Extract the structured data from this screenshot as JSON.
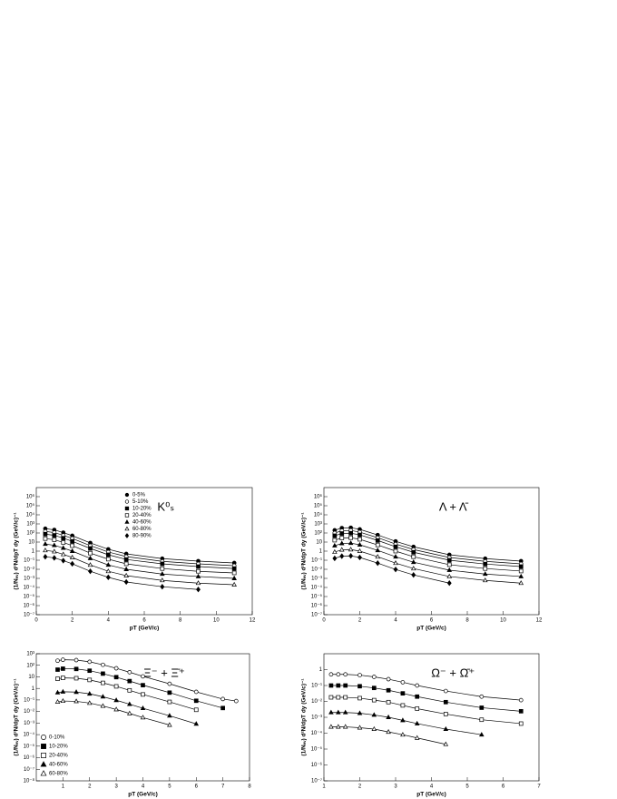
{
  "chart_data": [
    {
      "type": "scatter",
      "title": "K⁰ₛ",
      "xlabel": "pT (GeV/c)",
      "ylabel": "(1/Nₑᵥ) d²N/dpT dy (GeV/c)⁻¹",
      "log_y": true,
      "color": "#000000",
      "legend": "upper center",
      "xlim": [
        0,
        12
      ],
      "xticks": [
        0,
        2,
        4,
        6,
        8,
        10,
        12
      ],
      "ylim": [
        1e-07,
        10000000.0
      ],
      "yticks": [
        {
          "value": 1e-07,
          "label": "10⁻⁷"
        },
        {
          "value": 1e-06,
          "label": "10⁻⁶"
        },
        {
          "value": 1e-05,
          "label": "10⁻⁵"
        },
        {
          "value": 0.0001,
          "label": "10⁻⁴"
        },
        {
          "value": 0.001,
          "label": "10⁻³"
        },
        {
          "value": 0.01,
          "label": "10⁻²"
        },
        {
          "value": 0.1,
          "label": "10⁻¹"
        },
        1,
        10,
        {
          "value": 100,
          "label": "10²"
        },
        {
          "value": 1000,
          "label": "10³"
        },
        {
          "value": 10000,
          "label": "10⁴"
        },
        {
          "value": 100000,
          "label": "10⁵"
        },
        {
          "value": 1000000,
          "label": "10⁶"
        }
      ],
      "x": [
        0.5,
        1,
        1.5,
        2,
        3,
        4,
        5,
        7,
        9,
        11
      ],
      "series": [
        {
          "name": "0-5%",
          "marker": "circle",
          "filled": true,
          "values": [
            300,
            220,
            110,
            50,
            8,
            1.6,
            0.5,
            0.15,
            0.08,
            0.05
          ]
        },
        {
          "name": "5-10%",
          "marker": "circle",
          "filled": false,
          "values": [
            150,
            110,
            55,
            25,
            4,
            0.8,
            0.25,
            0.075,
            0.04,
            0.025
          ]
        },
        {
          "name": "10-20%",
          "marker": "square",
          "filled": true,
          "values": [
            75,
            55,
            27,
            12,
            2,
            0.4,
            0.12,
            0.04,
            0.02,
            0.012
          ]
        },
        {
          "name": "20-40%",
          "marker": "square",
          "filled": false,
          "values": [
            24,
            18,
            9,
            4,
            0.6,
            0.13,
            0.04,
            0.012,
            0.006,
            0.004
          ]
        },
        {
          "name": "40-60%",
          "marker": "triangle",
          "filled": true,
          "values": [
            6,
            4.4,
            2.2,
            1,
            0.16,
            0.03,
            0.01,
            0.003,
            0.0016,
            0.001
          ]
        },
        {
          "name": "60-80%",
          "marker": "triangle",
          "filled": false,
          "values": [
            1.2,
            0.9,
            0.44,
            0.2,
            0.03,
            0.006,
            0.002,
            0.0006,
            0.0003,
            0.0002
          ]
        },
        {
          "name": "80-90%",
          "marker": "diamond",
          "filled": true,
          "values": [
            0.24,
            0.18,
            0.09,
            0.04,
            0.006,
            0.0013,
            0.0004,
            0.00012,
            6e-05,
            null
          ]
        }
      ]
    },
    {
      "type": "scatter",
      "title": "Λ + Λ̄",
      "xlabel": "pT (GeV/c)",
      "ylabel": "(1/Nₑᵥ) d²N/dpT dy (GeV/c)⁻¹",
      "log_y": true,
      "color": "#000000",
      "xlim": [
        0,
        12
      ],
      "xticks": [
        0,
        2,
        4,
        6,
        8,
        10,
        12
      ],
      "ylim": [
        1e-07,
        10000000.0
      ],
      "yticks": [
        {
          "value": 1e-07,
          "label": "10⁻⁷"
        },
        {
          "value": 1e-06,
          "label": "10⁻⁶"
        },
        {
          "value": 1e-05,
          "label": "10⁻⁵"
        },
        {
          "value": 0.0001,
          "label": "10⁻⁴"
        },
        {
          "value": 0.001,
          "label": "10⁻³"
        },
        {
          "value": 0.01,
          "label": "10⁻²"
        },
        {
          "value": 0.1,
          "label": "10⁻¹"
        },
        1,
        10,
        {
          "value": 100,
          "label": "10²"
        },
        {
          "value": 1000,
          "label": "10³"
        },
        {
          "value": 10000,
          "label": "10⁴"
        },
        {
          "value": 100000,
          "label": "10⁵"
        },
        {
          "value": 1000000,
          "label": "10⁶"
        }
      ],
      "x": [
        0.6,
        1,
        1.5,
        2,
        3,
        4,
        5,
        7,
        9,
        11
      ],
      "series": [
        {
          "marker": "circle",
          "filled": true,
          "values": [
            200,
            350,
            380,
            250,
            60,
            12,
            3,
            0.4,
            0.15,
            0.08
          ]
        },
        {
          "marker": "circle",
          "filled": false,
          "values": [
            100,
            175,
            190,
            125,
            30,
            6,
            1.5,
            0.2,
            0.075,
            0.04
          ]
        },
        {
          "marker": "square",
          "filled": true,
          "values": [
            50,
            88,
            95,
            62,
            15,
            3,
            0.75,
            0.1,
            0.038,
            0.02
          ]
        },
        {
          "marker": "square",
          "filled": false,
          "values": [
            16,
            28,
            30,
            20,
            4.8,
            1,
            0.24,
            0.032,
            0.012,
            0.0064
          ]
        },
        {
          "marker": "triangle",
          "filled": true,
          "values": [
            4,
            7,
            7.6,
            5,
            1.2,
            0.24,
            0.06,
            0.008,
            0.003,
            0.0016
          ]
        },
        {
          "marker": "triangle",
          "filled": false,
          "values": [
            0.8,
            1.4,
            1.5,
            1,
            0.24,
            0.048,
            0.012,
            0.0016,
            0.0006,
            0.0003
          ]
        },
        {
          "marker": "diamond",
          "filled": true,
          "values": [
            0.16,
            0.28,
            0.3,
            0.2,
            0.048,
            0.0096,
            0.0024,
            0.0003,
            null,
            null
          ]
        }
      ]
    },
    {
      "type": "scatter",
      "title": "Ξ⁻ + Ξ̄⁺",
      "xlabel": "pT (GeV/c)",
      "ylabel": "(1/Nₑᵥ) d²N/dpT dy (GeV/c)⁻¹",
      "log_y": true,
      "color": "#000000",
      "legend": "lower left",
      "xlim": [
        0,
        8
      ],
      "xticks": [
        1,
        2,
        3,
        4,
        5,
        6,
        7,
        8
      ],
      "ylim": [
        1e-08,
        1000
      ],
      "yticks": [
        {
          "value": 1e-08,
          "label": "10⁻⁸"
        },
        {
          "value": 1e-07,
          "label": "10⁻⁷"
        },
        {
          "value": 1e-06,
          "label": "10⁻⁶"
        },
        {
          "value": 1e-05,
          "label": "10⁻⁵"
        },
        {
          "value": 0.0001,
          "label": "10⁻⁴"
        },
        {
          "value": 0.001,
          "label": "10⁻³"
        },
        {
          "value": 0.01,
          "label": "10⁻²"
        },
        {
          "value": 0.1,
          "label": "10⁻¹"
        },
        1,
        10,
        {
          "value": 100,
          "label": "10²"
        },
        {
          "value": 1000,
          "label": "10³"
        }
      ],
      "x": [
        0.8,
        1,
        1.5,
        2,
        2.5,
        3,
        3.5,
        4,
        5,
        6,
        7,
        7.5
      ],
      "series": [
        {
          "name": "0-10%",
          "marker": "circle",
          "filled": false,
          "values": [
            250,
            300,
            280,
            200,
            110,
            55,
            25,
            11,
            2.5,
            0.5,
            0.12,
            0.08
          ]
        },
        {
          "name": "10-20%",
          "marker": "square",
          "filled": true,
          "values": [
            42,
            51,
            48,
            34,
            19,
            9.4,
            4.3,
            1.9,
            0.43,
            0.085,
            0.02,
            null
          ]
        },
        {
          "name": "20-40%",
          "marker": "square",
          "filled": false,
          "values": [
            6.8,
            8.1,
            7.6,
            5.4,
            3,
            1.5,
            0.68,
            0.3,
            0.068,
            0.014,
            null,
            null
          ]
        },
        {
          "name": "40-60%",
          "marker": "triangle",
          "filled": true,
          "values": [
            0.43,
            0.51,
            0.48,
            0.34,
            0.19,
            0.094,
            0.043,
            0.019,
            0.0043,
            0.00085,
            null,
            null
          ]
        },
        {
          "name": "60-80%",
          "marker": "triangle",
          "filled": false,
          "values": [
            0.068,
            0.081,
            0.076,
            0.054,
            0.03,
            0.015,
            0.0068,
            0.003,
            0.00068,
            null,
            null,
            null
          ]
        }
      ]
    },
    {
      "type": "scatter",
      "title": "Ω⁻ + Ω̄⁺",
      "xlabel": "pT (GeV/c)",
      "ylabel": "(1/Nₑᵥ) d²N/dpT dy (GeV/c)⁻¹",
      "log_y": true,
      "color": "#000000",
      "xlim": [
        1,
        7
      ],
      "xticks": [
        1,
        2,
        3,
        4,
        5,
        6,
        7
      ],
      "ylim": [
        1e-07,
        10
      ],
      "yticks": [
        {
          "value": 1e-07,
          "label": "10⁻⁷"
        },
        {
          "value": 1e-06,
          "label": "10⁻⁶"
        },
        {
          "value": 1e-05,
          "label": "10⁻⁵"
        },
        {
          "value": 0.0001,
          "label": "10⁻⁴"
        },
        {
          "value": 0.001,
          "label": "10⁻³"
        },
        {
          "value": 0.01,
          "label": "10⁻²"
        },
        {
          "value": 0.1,
          "label": "10⁻¹"
        },
        1
      ],
      "x": [
        1.2,
        1.4,
        1.6,
        2,
        2.4,
        2.8,
        3.2,
        3.6,
        4.4,
        5.4,
        6.5
      ],
      "series": [
        {
          "marker": "circle",
          "filled": false,
          "values": [
            0.5,
            0.5,
            0.5,
            0.45,
            0.35,
            0.25,
            0.16,
            0.1,
            0.045,
            0.02,
            0.012
          ]
        },
        {
          "marker": "square",
          "filled": true,
          "values": [
            0.1,
            0.1,
            0.1,
            0.09,
            0.07,
            0.05,
            0.032,
            0.02,
            0.009,
            0.004,
            0.0024
          ]
        },
        {
          "marker": "square",
          "filled": false,
          "values": [
            0.018,
            0.018,
            0.018,
            0.016,
            0.012,
            0.009,
            0.0056,
            0.0035,
            0.0016,
            0.0007,
            0.0004
          ]
        },
        {
          "marker": "triangle",
          "filled": true,
          "values": [
            0.002,
            0.002,
            0.002,
            0.0018,
            0.0014,
            0.001,
            0.00064,
            0.0004,
            0.00018,
            8e-05,
            null
          ]
        },
        {
          "marker": "triangle",
          "filled": false,
          "values": [
            0.00025,
            0.00025,
            0.00025,
            0.00022,
            0.00018,
            0.00012,
            8e-05,
            5e-05,
            2e-05,
            null,
            null
          ]
        }
      ]
    }
  ]
}
